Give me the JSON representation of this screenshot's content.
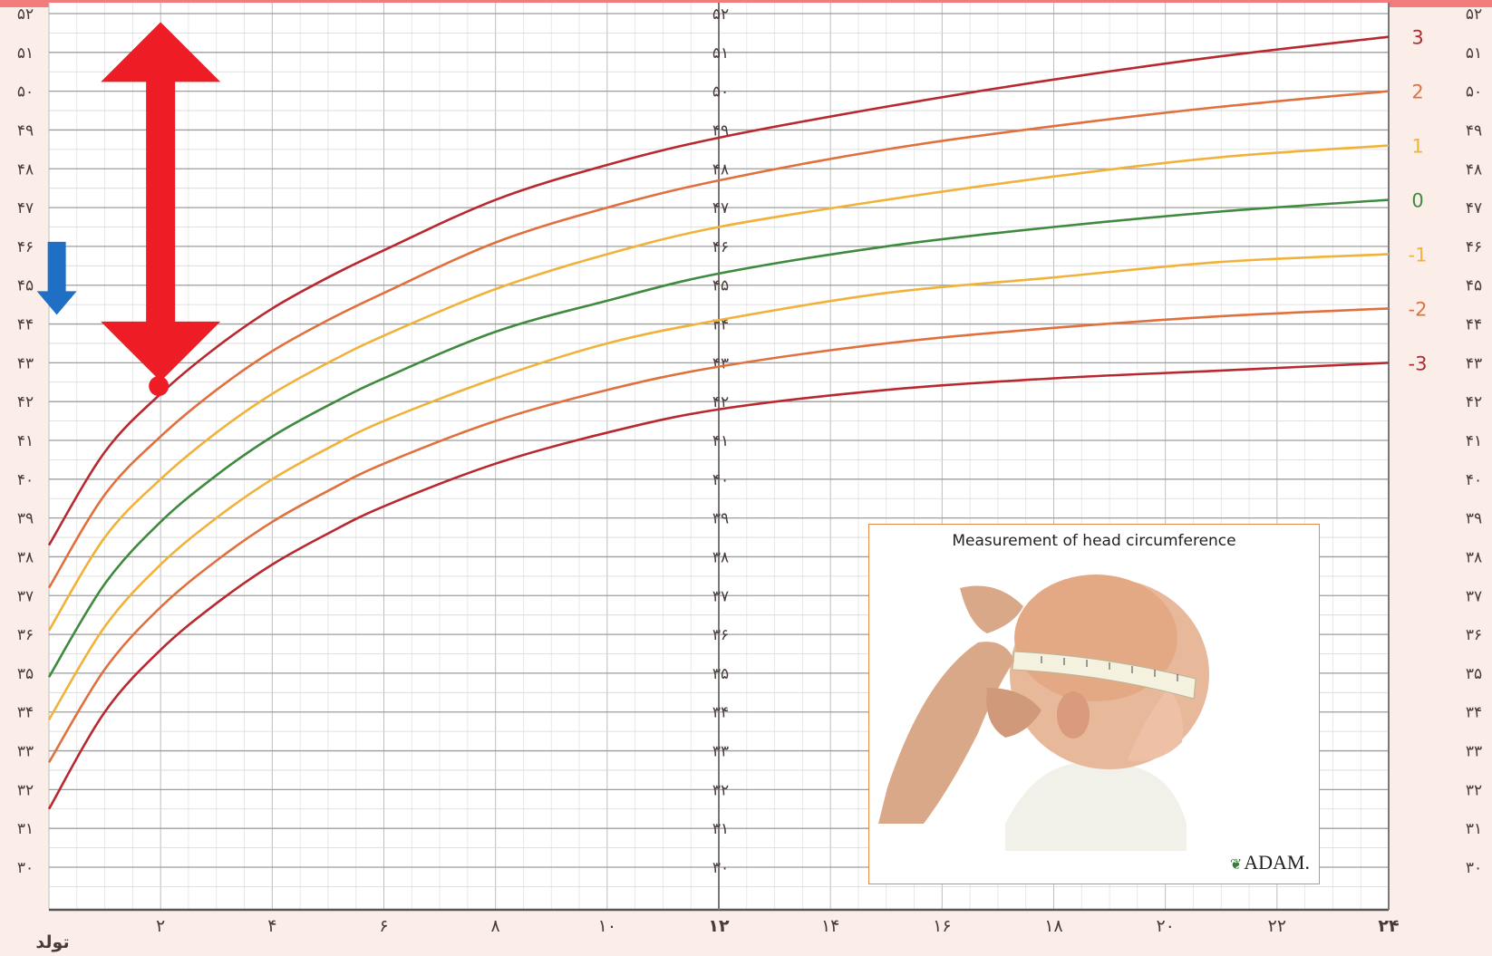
{
  "header": {
    "title": ""
  },
  "chart_data": {
    "type": "line",
    "title": "",
    "xlabel": "",
    "ylabel": "",
    "xlim": [
      0,
      24
    ],
    "ylim": [
      29.3,
      52
    ],
    "grid": true,
    "x_ticks": [
      {
        "value": 0,
        "label": "تولد"
      },
      {
        "value": 2,
        "label": "۲"
      },
      {
        "value": 4,
        "label": "۴"
      },
      {
        "value": 6,
        "label": "۶"
      },
      {
        "value": 8,
        "label": "۸"
      },
      {
        "value": 10,
        "label": "۱۰"
      },
      {
        "value": 12,
        "label": "۱۲"
      },
      {
        "value": 14,
        "label": "۱۴"
      },
      {
        "value": 16,
        "label": "۱۶"
      },
      {
        "value": 18,
        "label": "۱۸"
      },
      {
        "value": 20,
        "label": "۲۰"
      },
      {
        "value": 22,
        "label": "۲۲"
      },
      {
        "value": 24,
        "label": "۲۴"
      }
    ],
    "y_ticks": [
      {
        "value": 52,
        "label": "۵۲"
      },
      {
        "value": 51,
        "label": "۵۱"
      },
      {
        "value": 50,
        "label": "۵۰"
      },
      {
        "value": 49,
        "label": "۴۹"
      },
      {
        "value": 48,
        "label": "۴۸"
      },
      {
        "value": 47,
        "label": "۴۷"
      },
      {
        "value": 46,
        "label": "۴۶"
      },
      {
        "value": 45,
        "label": "۴۵"
      },
      {
        "value": 44,
        "label": "۴۴"
      },
      {
        "value": 43,
        "label": "۴۳"
      },
      {
        "value": 42,
        "label": "۴۲"
      },
      {
        "value": 41,
        "label": "۴۱"
      },
      {
        "value": 40,
        "label": "۴۰"
      },
      {
        "value": 39,
        "label": "۳۹"
      },
      {
        "value": 38,
        "label": "۳۸"
      },
      {
        "value": 37,
        "label": "۳۷"
      },
      {
        "value": 36,
        "label": "۳۶"
      },
      {
        "value": 35,
        "label": "۳۵"
      },
      {
        "value": 34,
        "label": "۳۴"
      },
      {
        "value": 33,
        "label": "۳۳"
      },
      {
        "value": 32,
        "label": "۳۲"
      },
      {
        "value": 31,
        "label": "۳۱"
      },
      {
        "value": 30,
        "label": "۳۰"
      }
    ],
    "x": [
      0,
      1,
      2,
      3,
      4,
      5,
      6,
      8,
      10,
      12,
      15,
      18,
      21,
      24
    ],
    "series": [
      {
        "name": "3",
        "color": "#b8282f",
        "values": [
          38.3,
          40.7,
          42.2,
          43.4,
          44.4,
          45.2,
          45.9,
          47.2,
          48.1,
          48.8,
          49.6,
          50.3,
          50.9,
          51.4
        ]
      },
      {
        "name": "2",
        "color": "#e0703e",
        "values": [
          37.2,
          39.6,
          41.1,
          42.3,
          43.3,
          44.1,
          44.8,
          46.1,
          47.0,
          47.7,
          48.5,
          49.1,
          49.6,
          50.0
        ]
      },
      {
        "name": "1",
        "color": "#f0b23a",
        "values": [
          36.1,
          38.5,
          40.0,
          41.2,
          42.2,
          43.0,
          43.7,
          44.9,
          45.8,
          46.5,
          47.2,
          47.8,
          48.3,
          48.6
        ]
      },
      {
        "name": "0",
        "color": "#3f8a3f",
        "values": [
          34.9,
          37.3,
          38.9,
          40.1,
          41.1,
          41.9,
          42.6,
          43.8,
          44.6,
          45.3,
          46.0,
          46.5,
          46.9,
          47.2
        ]
      },
      {
        "name": "-1",
        "color": "#f0b23a",
        "values": [
          33.8,
          36.2,
          37.8,
          39.0,
          40.0,
          40.8,
          41.5,
          42.6,
          43.5,
          44.1,
          44.8,
          45.2,
          45.6,
          45.8
        ]
      },
      {
        "name": "-2",
        "color": "#e0703e",
        "values": [
          32.7,
          35.1,
          36.7,
          37.9,
          38.9,
          39.7,
          40.4,
          41.5,
          42.3,
          42.9,
          43.5,
          43.9,
          44.2,
          44.4
        ]
      },
      {
        "name": "-3",
        "color": "#b8282f",
        "values": [
          31.5,
          34.0,
          35.6,
          36.8,
          37.8,
          38.6,
          39.3,
          40.4,
          41.2,
          41.8,
          42.3,
          42.6,
          42.8,
          43.0
        ]
      }
    ],
    "annotations": {
      "measurement_point": {
        "x": 2,
        "y": 42.4,
        "color": "#ee1c25"
      },
      "big_double_arrow": {
        "x": 2,
        "y_from": 42.8,
        "y_to": 51.5,
        "color": "#ee1c25"
      },
      "small_down_arrow": {
        "x": 0.4,
        "y_from": 46.0,
        "y_to": 44.4,
        "color": "#1f6fc4"
      }
    }
  },
  "inset": {
    "caption": "Measurement of head circumference",
    "logo": "ADAM.",
    "border_color": "#e8884a"
  }
}
